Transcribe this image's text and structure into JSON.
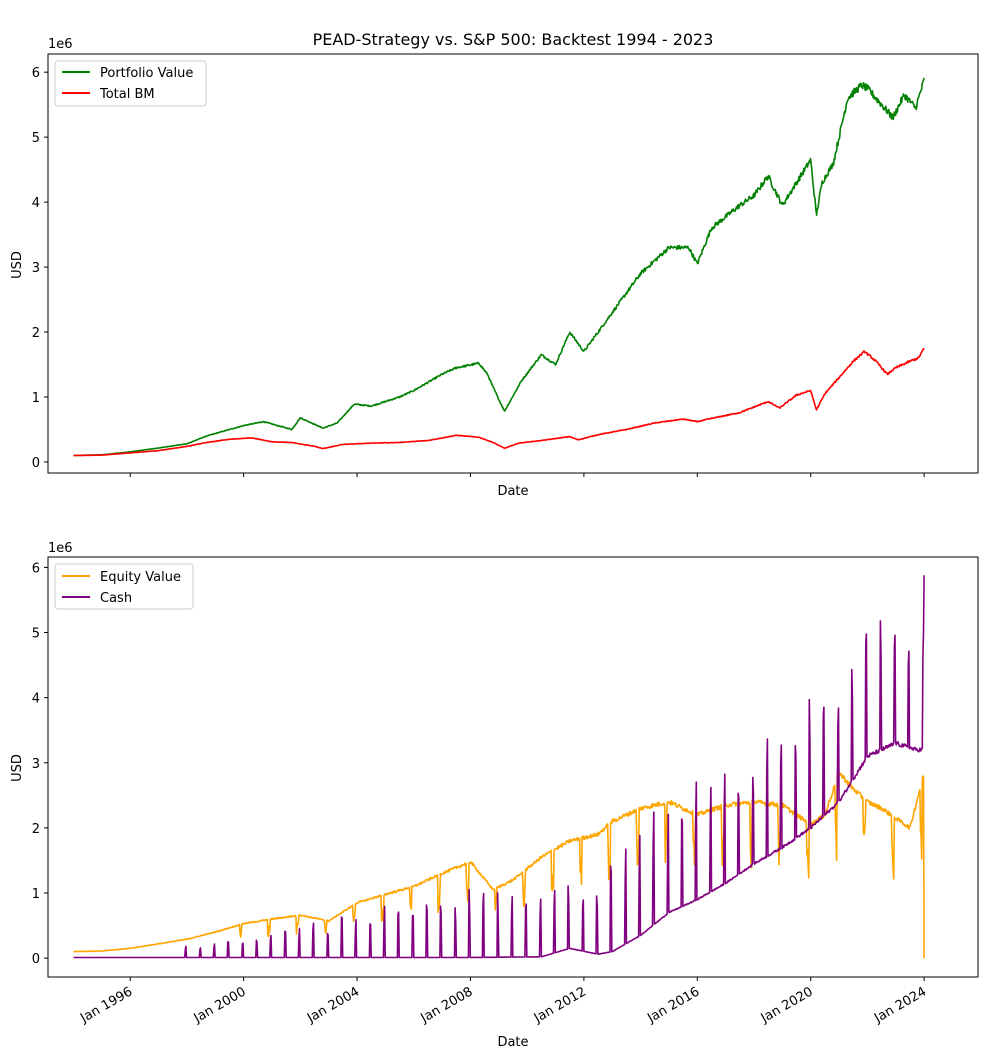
{
  "chart_data": [
    {
      "type": "line",
      "title": "PEAD-Strategy vs. S&P 500: Backtest 1994 - 2023",
      "xlabel": "Date",
      "ylabel": "USD",
      "y_multiplier": "1e6",
      "x_range": [
        1993.1,
        2025.9
      ],
      "ylim": [
        -170000,
        6280000
      ],
      "y_ticks": [
        0,
        1000000,
        2000000,
        3000000,
        4000000,
        5000000,
        6000000
      ],
      "y_tick_labels": [
        "0",
        "1",
        "2",
        "3",
        "4",
        "5",
        "6"
      ],
      "x_tick_values": [
        1996,
        2000,
        2004,
        2008,
        2012,
        2016,
        2020,
        2024
      ],
      "x_tick_labels_shown": false,
      "grid": false,
      "legend": "top-left",
      "series": [
        {
          "name": "Portfolio Value",
          "color": "#008000",
          "x": [
            1994.0,
            1995.0,
            1996.0,
            1997.0,
            1998.0,
            1998.7,
            1999.5,
            2000.0,
            2000.7,
            2001.7,
            2002.0,
            2002.8,
            2003.3,
            2003.9,
            2004.5,
            2005.5,
            2006.0,
            2007.0,
            2007.5,
            2008.3,
            2008.6,
            2008.8,
            2009.2,
            2009.8,
            2010.5,
            2011.0,
            2011.5,
            2012.0,
            2012.5,
            2013.0,
            2014.0,
            2015.0,
            2015.7,
            2016.0,
            2016.5,
            2017.5,
            2018.0,
            2018.5,
            2019.0,
            2019.5,
            2020.0,
            2020.2,
            2020.4,
            2020.8,
            2021.3,
            2021.8,
            2022.0,
            2022.5,
            2022.9,
            2023.3,
            2023.7,
            2024.0
          ],
          "values": [
            100000,
            110000,
            155000,
            215000,
            280000,
            400000,
            500000,
            560000,
            620000,
            500000,
            680000,
            520000,
            600000,
            890000,
            860000,
            1000000,
            1100000,
            1350000,
            1450000,
            1520000,
            1350000,
            1150000,
            780000,
            1250000,
            1650000,
            1500000,
            2000000,
            1700000,
            2000000,
            2300000,
            2900000,
            3300000,
            3300000,
            3050000,
            3600000,
            3950000,
            4100000,
            4400000,
            3950000,
            4300000,
            4650000,
            3800000,
            4300000,
            4600000,
            5600000,
            5800000,
            5750000,
            5500000,
            5300000,
            5650000,
            5450000,
            5880000
          ]
        },
        {
          "name": "Total BM",
          "color": "#ff0000",
          "x": [
            1994.0,
            1995.0,
            1996.0,
            1997.0,
            1998.0,
            1998.7,
            1999.5,
            2000.3,
            2001.0,
            2001.7,
            2002.5,
            2002.8,
            2003.5,
            2004.5,
            2005.5,
            2006.5,
            2007.5,
            2008.3,
            2008.8,
            2009.2,
            2009.7,
            2010.5,
            2011.5,
            2011.8,
            2012.5,
            2013.5,
            2014.5,
            2015.5,
            2016.0,
            2016.5,
            2017.5,
            2018.5,
            2018.9,
            2019.5,
            2020.0,
            2020.2,
            2020.5,
            2021.0,
            2021.5,
            2021.9,
            2022.3,
            2022.7,
            2023.0,
            2023.5,
            2023.8,
            2024.0
          ],
          "values": [
            100000,
            105000,
            140000,
            175000,
            240000,
            300000,
            350000,
            370000,
            310000,
            300000,
            240000,
            205000,
            270000,
            290000,
            300000,
            330000,
            410000,
            380000,
            300000,
            210000,
            290000,
            330000,
            390000,
            340000,
            420000,
            500000,
            600000,
            660000,
            620000,
            670000,
            760000,
            930000,
            830000,
            1030000,
            1100000,
            800000,
            1050000,
            1300000,
            1550000,
            1700000,
            1550000,
            1350000,
            1450000,
            1550000,
            1600000,
            1750000
          ]
        }
      ]
    },
    {
      "type": "line",
      "title": "",
      "xlabel": "Date",
      "ylabel": "USD",
      "y_multiplier": "1e6",
      "x_range": [
        1993.1,
        2025.9
      ],
      "ylim": [
        -290000,
        6160000
      ],
      "y_ticks": [
        0,
        1000000,
        2000000,
        3000000,
        4000000,
        5000000,
        6000000
      ],
      "y_tick_labels": [
        "0",
        "1",
        "2",
        "3",
        "4",
        "5",
        "6"
      ],
      "x_tick_values": [
        1996,
        2000,
        2004,
        2008,
        2012,
        2016,
        2020,
        2024
      ],
      "x_tick_labels": [
        "Jan 1996",
        "Jan 2000",
        "Jan 2004",
        "Jan 2008",
        "Jan 2012",
        "Jan 2016",
        "Jan 2020",
        "Jan 2024"
      ],
      "grid": false,
      "legend": "top-left",
      "series": [
        {
          "name": "Equity Value",
          "color": "#ffa500",
          "x": [
            1994.0,
            1995.0,
            1996.0,
            1997.0,
            1998.0,
            1999.0,
            2000.0,
            2001.0,
            2002.0,
            2003.0,
            2004.0,
            2005.0,
            2006.0,
            2007.0,
            2008.0,
            2008.8,
            2009.5,
            2010.5,
            2011.5,
            2012.5,
            2013.0,
            2014.0,
            2015.0,
            2016.0,
            2017.0,
            2018.0,
            2019.0,
            2019.5,
            2020.0,
            2020.5,
            2021.0,
            2021.5,
            2022.0,
            2022.5,
            2023.0,
            2023.5,
            2024.0
          ],
          "values": [
            100000,
            110000,
            150000,
            220000,
            290000,
            400000,
            530000,
            600000,
            660000,
            570000,
            850000,
            980000,
            1100000,
            1300000,
            1480000,
            1050000,
            1200000,
            1550000,
            1800000,
            1900000,
            2100000,
            2300000,
            2400000,
            2200000,
            2350000,
            2400000,
            2350000,
            2200000,
            2050000,
            2200000,
            2850000,
            2600000,
            2400000,
            2300000,
            2150000,
            2000000,
            2850000
          ],
          "dip_period_years": 1.0,
          "dip_fraction": 0.3,
          "final_value": 0
        },
        {
          "name": "Cash",
          "color": "#800080",
          "x": [
            1994.0,
            2000.0,
            2004.0,
            2008.0,
            2010.5,
            2011.5,
            2012.5,
            2013.0,
            2014.0,
            2015.0,
            2016.0,
            2017.0,
            2018.0,
            2019.0,
            2020.0,
            2021.0,
            2022.0,
            2023.0,
            2023.7
          ],
          "values": [
            10000,
            10000,
            10000,
            10000,
            20000,
            150000,
            60000,
            100000,
            350000,
            700000,
            900000,
            1150000,
            1450000,
            1700000,
            2000000,
            2400000,
            3100000,
            3300000,
            3200000
          ],
          "spike_period_years": 0.5,
          "spike_heights": [
            0,
            250000,
            650000,
            950000,
            950000,
            1000000,
            1250000,
            1600000,
            1600000,
            1650000,
            1700000,
            1750000,
            1800000,
            1850000,
            1900000,
            1700000
          ],
          "spike_height_years": [
            1994.0,
            2000.0,
            2004.0,
            2008.0,
            2010.5,
            2012.0,
            2013.0,
            2014.0,
            2015.0,
            2016.0,
            2017.0,
            2018.0,
            2019.0,
            2020.0,
            2022.0,
            2023.8
          ],
          "final_value": 5880000
        }
      ]
    }
  ]
}
